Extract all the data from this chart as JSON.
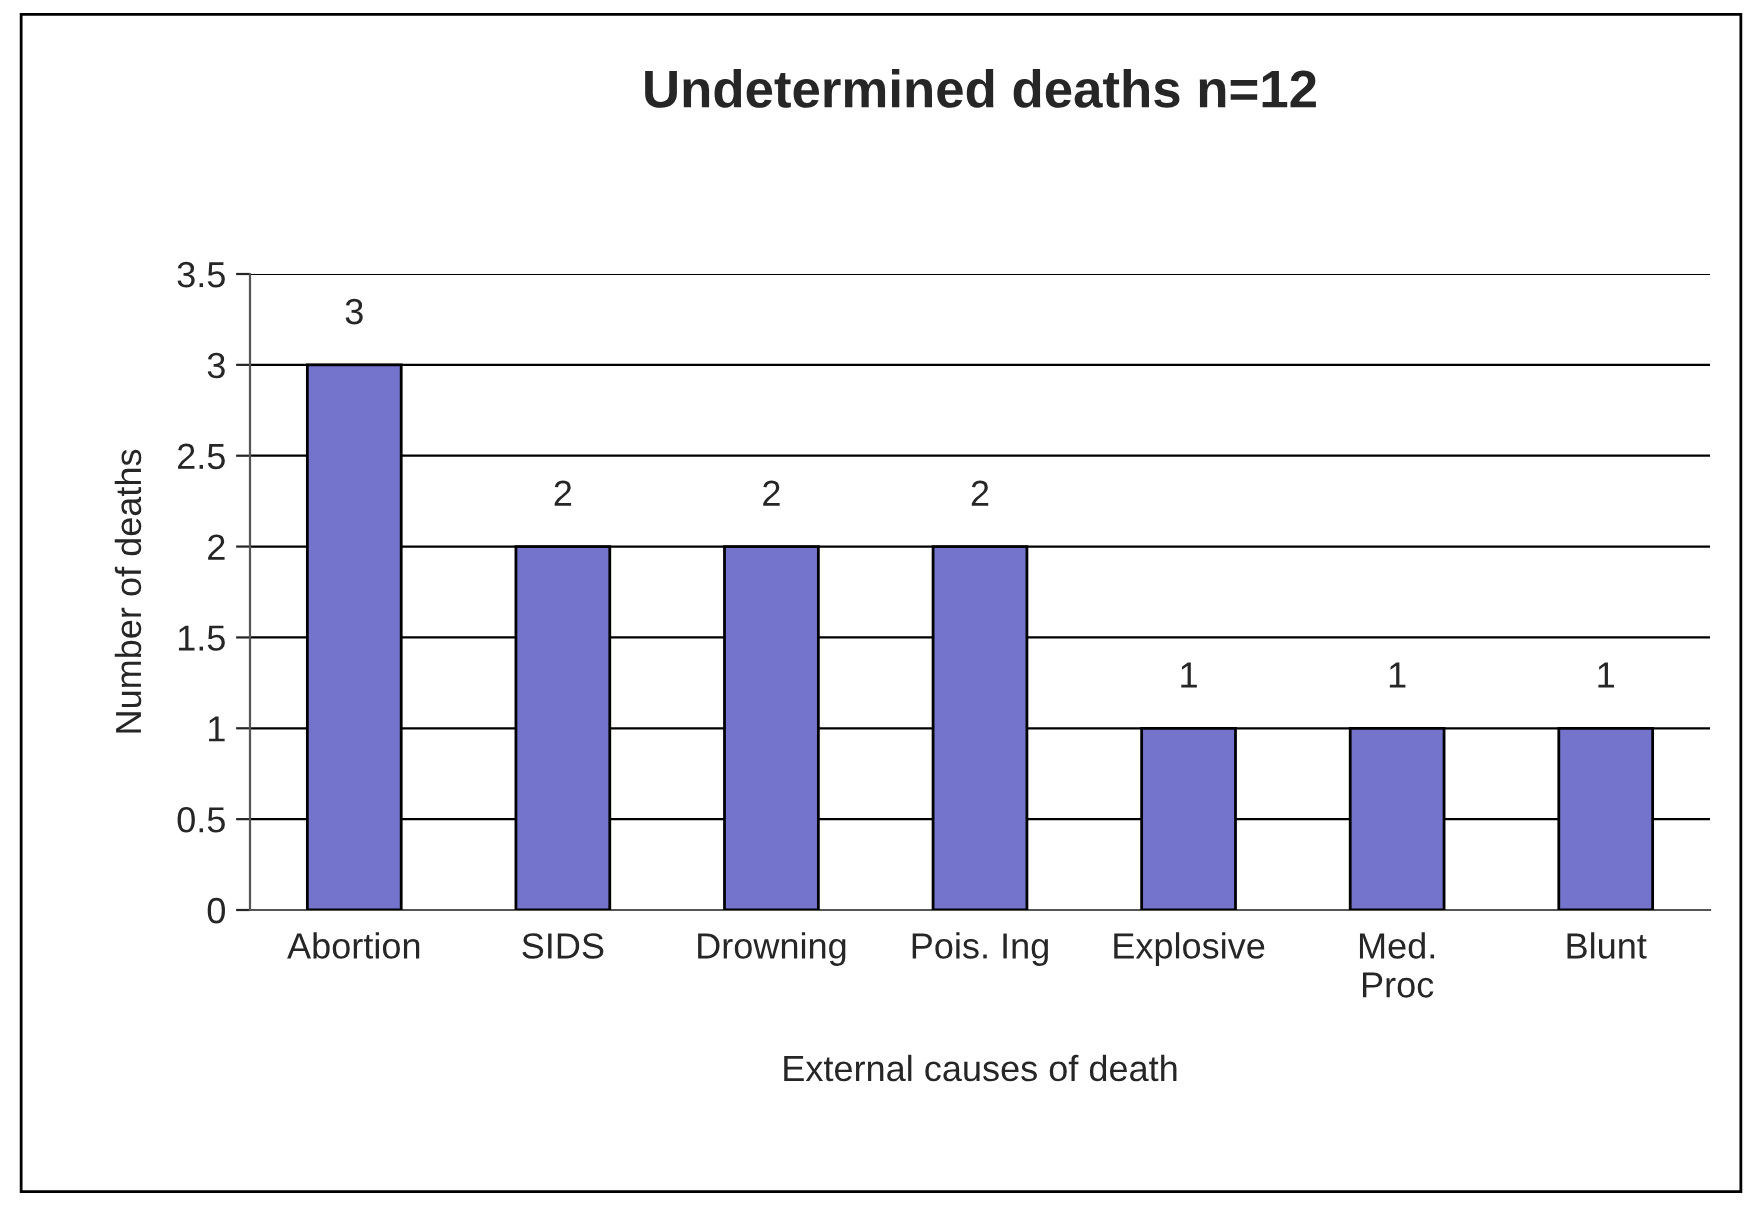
{
  "chart_data": {
    "type": "bar",
    "title": "Undetermined deaths n=12",
    "xlabel": "External causes of death",
    "ylabel": "Number of deaths",
    "categories": [
      "Abortion",
      "SIDS",
      "Drowning",
      "Pois. Ing",
      "Explosive",
      "Med.\nProc",
      "Blunt"
    ],
    "values": [
      3,
      2,
      2,
      2,
      1,
      1,
      1
    ],
    "color": "#7474cc",
    "ylim": [
      0,
      3.5
    ],
    "yticks": [
      0,
      0.5,
      1,
      1.5,
      2,
      2.5,
      3,
      3.5
    ],
    "grid": "y",
    "data_labels": true
  }
}
